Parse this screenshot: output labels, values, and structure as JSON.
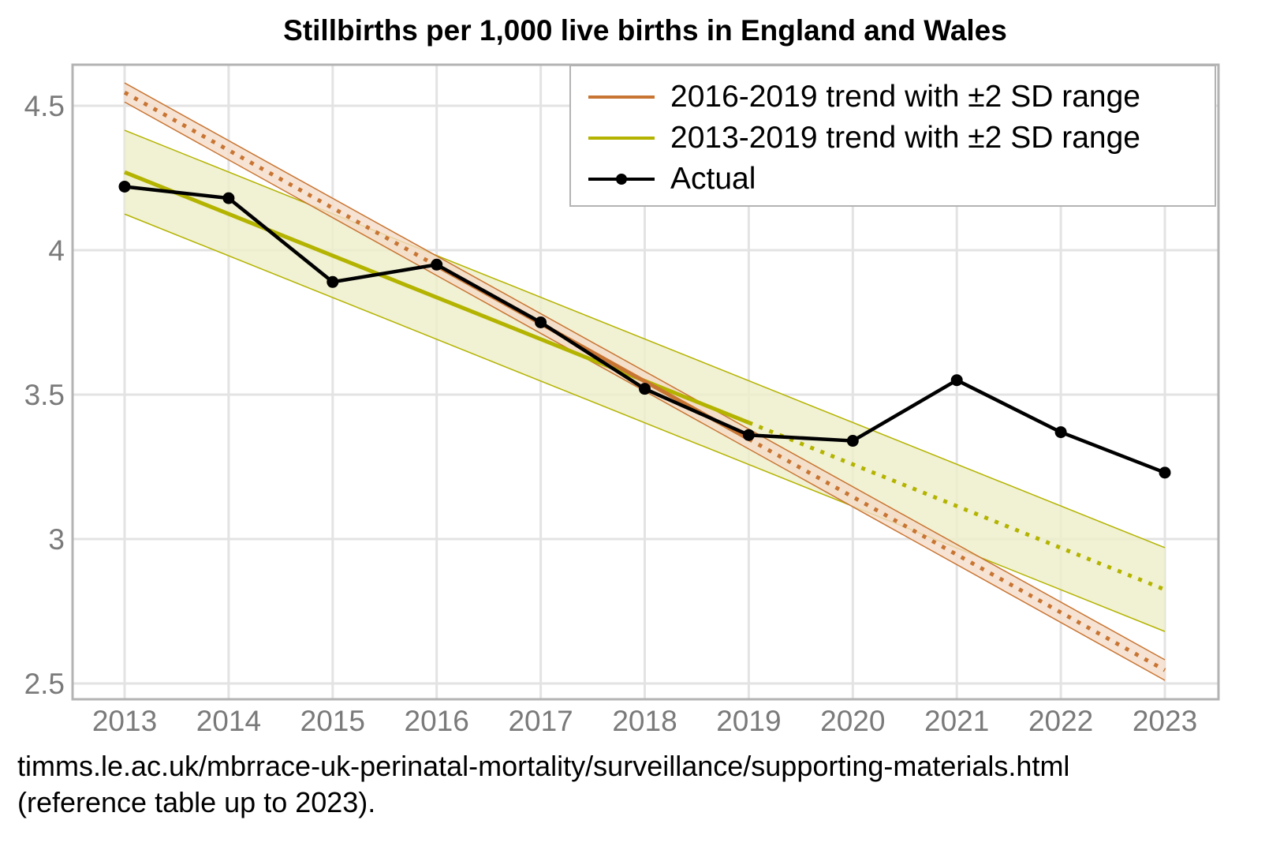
{
  "chart_data": {
    "type": "line",
    "title": "Stillbirths per 1,000 live births in England and Wales",
    "xlabel": "",
    "ylabel": "",
    "x": [
      2013,
      2014,
      2015,
      2016,
      2017,
      2018,
      2019,
      2020,
      2021,
      2022,
      2023
    ],
    "xlim": [
      2012.5,
      2023.5
    ],
    "ylim": [
      2.46,
      4.64
    ],
    "xticks": [
      "2013",
      "2014",
      "2015",
      "2016",
      "2017",
      "2018",
      "2019",
      "2020",
      "2021",
      "2022",
      "2023"
    ],
    "yticks": [
      2.5,
      3,
      3.5,
      4,
      4.5
    ],
    "ytick_labels": [
      "2.5",
      "3",
      "3.5",
      "4",
      "4.5"
    ],
    "grid": true,
    "legend_position": "top-right",
    "series": [
      {
        "name": "2016-2019 trend with ±2 SD range",
        "color": "#c87533",
        "fill": "#f5dcc8",
        "fit_years": [
          2016,
          2019
        ],
        "trend_start": {
          "x": 2013,
          "y": 4.546
        },
        "trend_end": {
          "x": 2023,
          "y": 2.546
        },
        "band_upper": {
          "start": 4.579,
          "end": 2.582
        },
        "band_lower": {
          "start": 4.513,
          "end": 2.511
        },
        "solid_range": [
          2016,
          2019
        ]
      },
      {
        "name": "2013-2019 trend with ±2 SD range",
        "color": "#b3b300",
        "fill": "#eeeec8",
        "fit_years": [
          2013,
          2019
        ],
        "trend_start": {
          "x": 2013,
          "y": 4.27
        },
        "trend_end": {
          "x": 2023,
          "y": 2.825
        },
        "band_upper": {
          "start": 4.415,
          "end": 2.97
        },
        "band_lower": {
          "start": 4.125,
          "end": 2.68
        },
        "solid_range": [
          2013,
          2019
        ]
      },
      {
        "name": "Actual",
        "color": "#000000",
        "values": [
          4.22,
          4.18,
          3.89,
          3.95,
          3.75,
          3.52,
          3.36,
          3.34,
          3.55,
          3.37,
          3.23
        ]
      }
    ],
    "caption": [
      "timms.le.ac.uk/mbrrace-uk-perinatal-mortality/surveillance/supporting-materials.html",
      "(reference table up to 2023)."
    ]
  }
}
